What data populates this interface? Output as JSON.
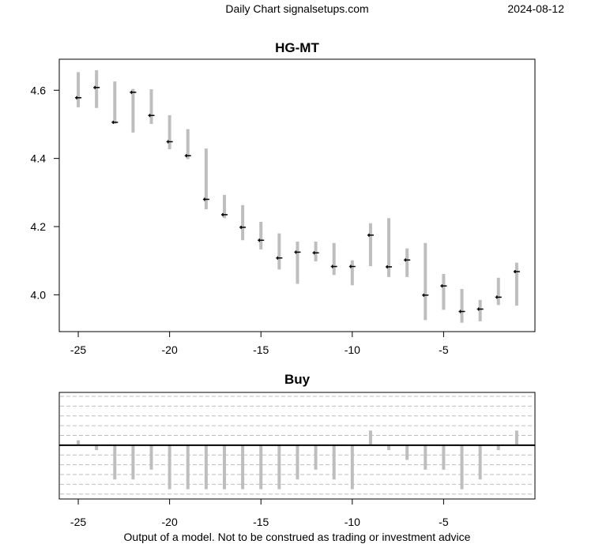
{
  "header": {
    "left": "Daily Chart signalsetups.com",
    "right": "2024-08-12"
  },
  "footer": "Output of a model. Not to be construed as trading or investment advice",
  "chart_data": [
    {
      "type": "range",
      "title": "HG-MT",
      "x": [
        -25,
        -24,
        -23,
        -22,
        -21,
        -20,
        -19,
        -18,
        -17,
        -16,
        -15,
        -14,
        -13,
        -12,
        -11,
        -10,
        -9,
        -8,
        -7,
        -6,
        -5,
        -4,
        -3,
        -2,
        -1
      ],
      "high": [
        4.653,
        4.659,
        4.626,
        4.604,
        4.603,
        4.527,
        4.486,
        4.429,
        4.293,
        4.263,
        4.214,
        4.18,
        4.156,
        4.156,
        4.152,
        4.101,
        4.21,
        4.225,
        4.136,
        4.152,
        4.061,
        4.017,
        3.985,
        4.05,
        4.094
      ],
      "low": [
        4.55,
        4.548,
        4.501,
        4.476,
        4.501,
        4.427,
        4.398,
        4.251,
        4.225,
        4.16,
        4.133,
        4.074,
        4.032,
        4.098,
        4.058,
        4.028,
        4.084,
        4.052,
        4.052,
        3.926,
        3.956,
        3.918,
        3.922,
        3.97,
        3.968
      ],
      "close": [
        4.578,
        4.608,
        4.506,
        4.594,
        4.526,
        4.449,
        4.408,
        4.28,
        4.235,
        4.198,
        4.16,
        4.108,
        4.125,
        4.123,
        4.083,
        4.083,
        4.175,
        4.082,
        4.102,
        3.999,
        4.026,
        3.951,
        3.958,
        3.993,
        4.068
      ],
      "xlim": [
        -26.04,
        0.0
      ],
      "ylim": [
        3.892,
        4.691
      ],
      "xticks": [
        -25,
        -20,
        -15,
        -10,
        -5
      ],
      "yticks": [
        4.0,
        4.2,
        4.4,
        4.6
      ],
      "bar_color": "#bebebe"
    },
    {
      "type": "bar",
      "title": "Buy",
      "x": [
        -25,
        -24,
        -23,
        -22,
        -21,
        -20,
        -19,
        -18,
        -17,
        -16,
        -15,
        -14,
        -13,
        -12,
        -11,
        -10,
        -9,
        -8,
        -7,
        -6,
        -5,
        -4,
        -3,
        -2,
        -1
      ],
      "values": [
        0.5,
        -0.5,
        -3.5,
        -3.5,
        -2.5,
        -4.5,
        -4.5,
        -4.5,
        -4.5,
        -4.5,
        -4.5,
        -4.5,
        -3.5,
        -2.5,
        -3.5,
        -4.5,
        1.5,
        -0.5,
        -1.5,
        -2.5,
        -2.5,
        -4.5,
        -3.5,
        -0.5,
        1.5
      ],
      "xlim": [
        -26.04,
        0.0
      ],
      "ylim": [
        -5.5,
        5.4
      ],
      "xticks": [
        -25,
        -20,
        -15,
        -10,
        -5
      ],
      "grid": true,
      "bar_color": "#bebebe"
    }
  ]
}
